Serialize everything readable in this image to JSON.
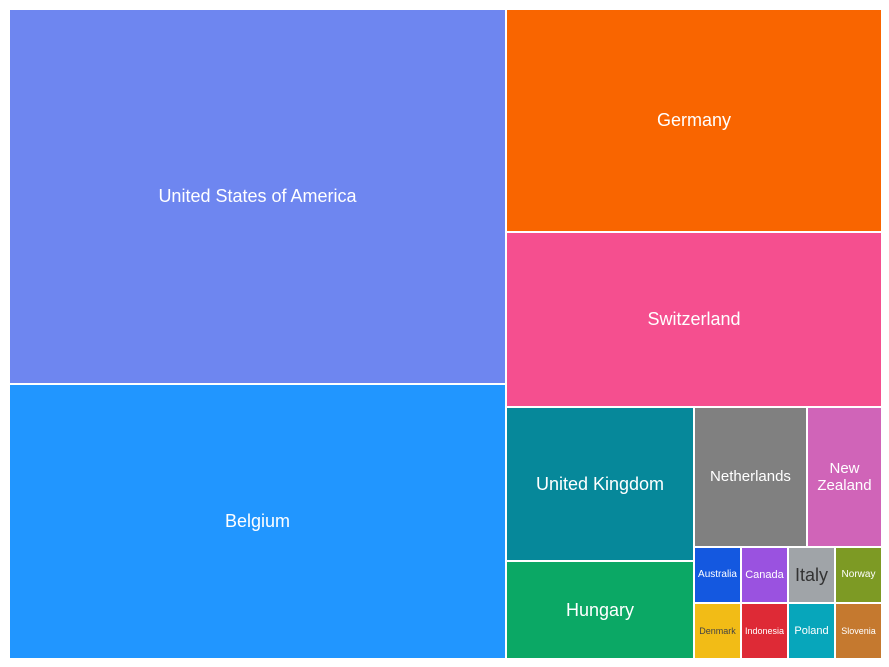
{
  "chart_data": {
    "type": "treemap",
    "title": "",
    "items": [
      {
        "label": "United States of America",
        "value": 185,
        "color": "#6e86f0"
      },
      {
        "label": "Belgium",
        "value": 138,
        "color": "#2196ff"
      },
      {
        "label": "Germany",
        "value": 83,
        "color": "#f96500"
      },
      {
        "label": "Switzerland",
        "value": 65,
        "color": "#f54f8f"
      },
      {
        "label": "United Kingdom",
        "value": 26,
        "color": "#06889a"
      },
      {
        "label": "Netherlands",
        "value": 18.8,
        "color": "#808080"
      },
      {
        "label": "New\nZealand",
        "value": 13.4,
        "color": "#d064b8"
      },
      {
        "label": "Hungary",
        "value": 16.1,
        "color": "#0ba865"
      },
      {
        "label": "Australia",
        "value": 2.6,
        "color": "#1458e0",
        "text_color": "#ffffff"
      },
      {
        "label": "Canada",
        "value": 2.6,
        "color": "#9a52e0",
        "text_color": "#ffffff"
      },
      {
        "label": "Italy",
        "value": 2.6,
        "color": "#a0a4a8",
        "text_color": "#333333"
      },
      {
        "label": "Norway",
        "value": 2.6,
        "color": "#7d9a24",
        "text_color": "#ffffff"
      },
      {
        "label": "Denmark",
        "value": 2.6,
        "color": "#f2bc16",
        "text_color": "#444444"
      },
      {
        "label": "Indonesia",
        "value": 2.6,
        "color": "#de2a36",
        "text_color": "#ffffff"
      },
      {
        "label": "Poland",
        "value": 2.6,
        "color": "#07a6bb",
        "text_color": "#ffffff"
      },
      {
        "label": "Slovenia",
        "value": 2.6,
        "color": "#c5792f",
        "text_color": "#ffffff"
      }
    ]
  }
}
